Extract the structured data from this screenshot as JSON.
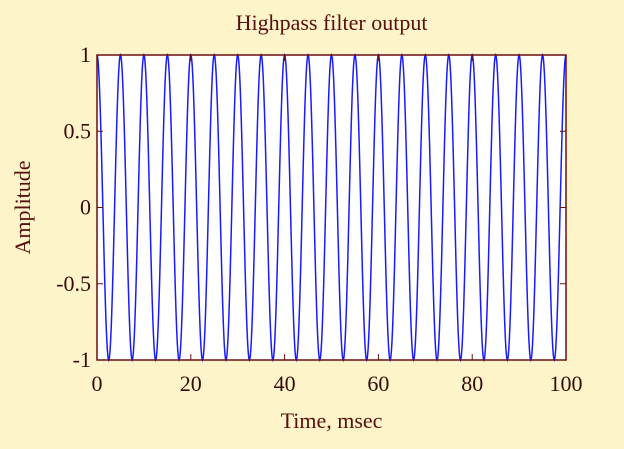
{
  "chart_data": {
    "type": "line",
    "title": "Highpass filter output",
    "xlabel": "Time, msec",
    "ylabel": "Amplitude",
    "xlim": [
      0,
      100
    ],
    "ylim": [
      -1,
      1
    ],
    "xticks": [
      0,
      20,
      40,
      60,
      80,
      100
    ],
    "xtick_labels": [
      "0",
      "20",
      "40",
      "60",
      "80",
      "100"
    ],
    "yticks": [
      1,
      0.5,
      0,
      -0.5,
      -1
    ],
    "ytick_labels": [
      "1",
      "0.5",
      "0",
      "-0.5",
      "-1"
    ],
    "grid": false,
    "series": [
      {
        "signal": "cosine",
        "amplitude": 1,
        "frequency_per_msec": 0.2,
        "phase_deg": 0,
        "x_start": 0,
        "x_end": 100,
        "sample_step_msec": 0.1
      }
    ],
    "colors": {
      "line": "#1a1aff",
      "axes": "#6b0f0f",
      "plot_bg": "#ffffff",
      "page_bg": "#fdf5c9"
    }
  }
}
